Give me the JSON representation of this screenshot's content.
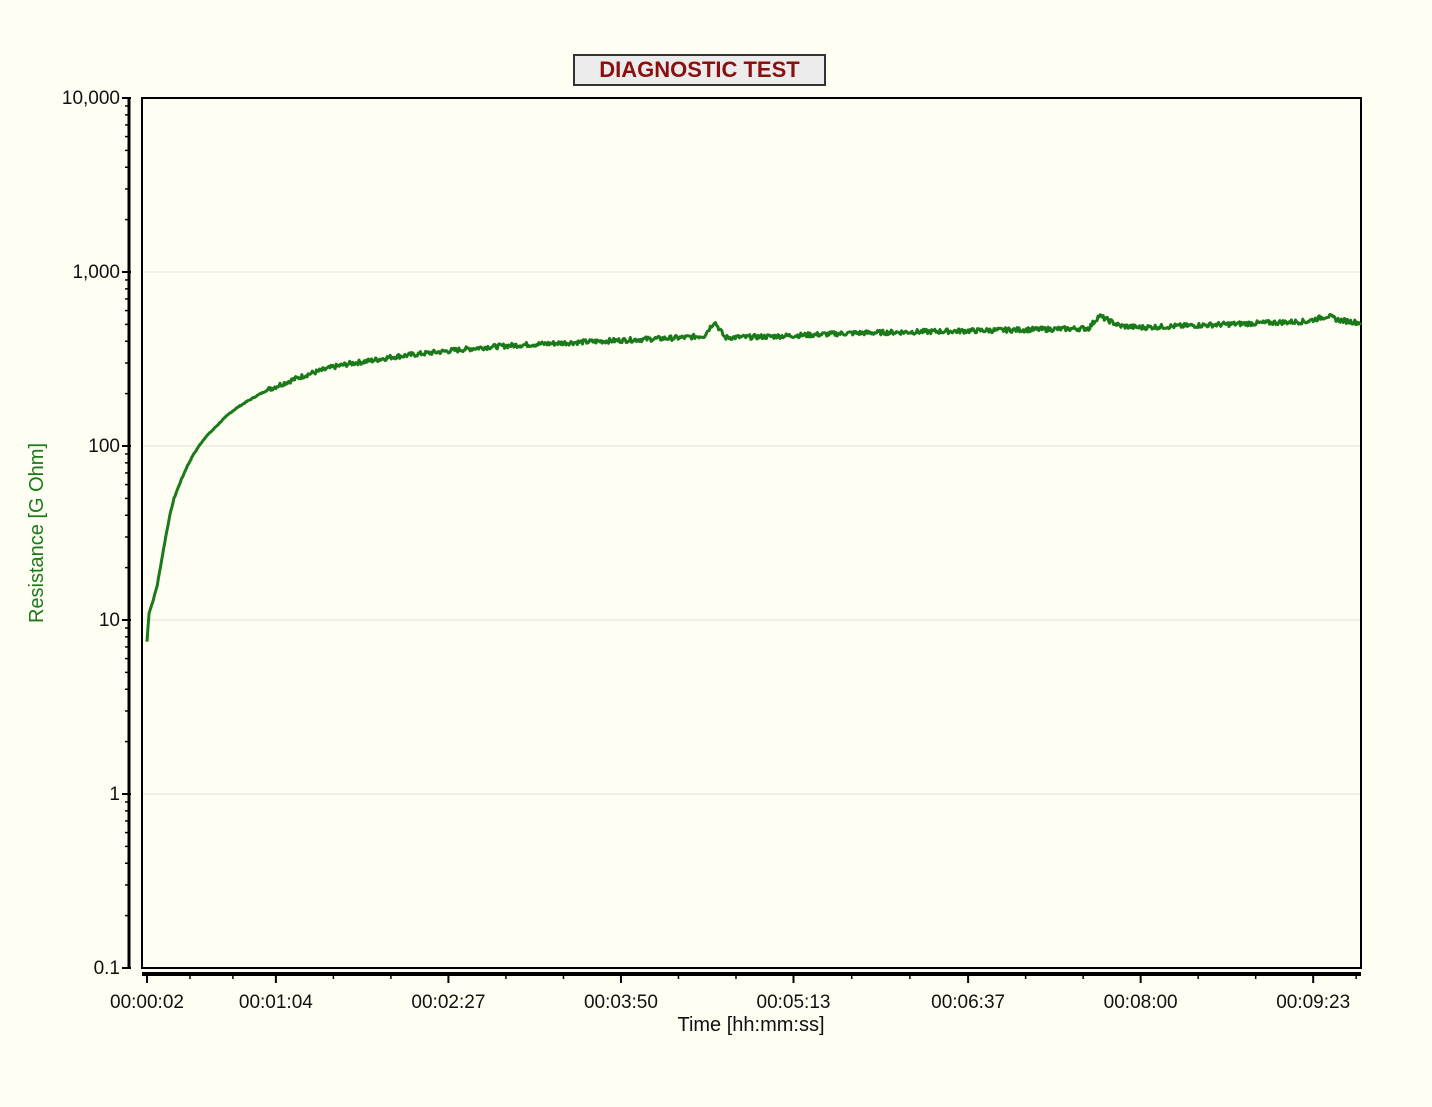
{
  "chart_data": {
    "type": "line",
    "title": "DIAGNOSTIC TEST",
    "xlabel": "Time  [hh:mm:ss]",
    "ylabel": "Resistance  [G Ohm]",
    "yscale": "log",
    "ylim": [
      0.1,
      10000
    ],
    "y_ticks": [
      {
        "value": 0.1,
        "label": "0.1"
      },
      {
        "value": 1,
        "label": "1"
      },
      {
        "value": 10,
        "label": "10"
      },
      {
        "value": 100,
        "label": "100"
      },
      {
        "value": 1000,
        "label": "1,000"
      },
      {
        "value": 10000,
        "label": "10,000"
      }
    ],
    "x_unit": "seconds",
    "xlim": [
      2,
      586
    ],
    "x_ticks": [
      {
        "value": 2,
        "label": "00:00:02"
      },
      {
        "value": 64,
        "label": "00:01:04"
      },
      {
        "value": 147,
        "label": "00:02:27"
      },
      {
        "value": 230,
        "label": "00:03:50"
      },
      {
        "value": 313,
        "label": "00:05:13"
      },
      {
        "value": 397,
        "label": "00:06:37"
      },
      {
        "value": 480,
        "label": "00:08:00"
      },
      {
        "value": 563,
        "label": "00:09:23"
      }
    ],
    "grid": true,
    "colors": {
      "line": "#1a7a1a",
      "title": "#8b0f0f",
      "background": "#fefef2"
    },
    "series": [
      {
        "x": [
          2,
          3,
          5,
          7,
          9,
          11,
          13,
          15,
          18,
          21,
          24,
          27,
          30,
          34,
          38,
          42,
          46,
          50,
          55,
          60,
          66,
          72,
          78,
          85,
          92,
          100,
          110,
          120,
          135,
          150,
          165,
          180,
          200,
          220,
          240,
          260,
          270,
          275,
          280,
          300,
          320,
          340,
          360,
          380,
          400,
          420,
          440,
          455,
          460,
          470,
          480,
          500,
          520,
          540,
          560,
          570,
          575,
          586
        ],
        "y": [
          7.5,
          11,
          13,
          16,
          22,
          30,
          40,
          50,
          62,
          75,
          88,
          100,
          112,
          125,
          140,
          155,
          168,
          180,
          195,
          210,
          225,
          240,
          255,
          270,
          285,
          298,
          310,
          325,
          340,
          355,
          370,
          380,
          390,
          400,
          410,
          420,
          430,
          520,
          420,
          425,
          435,
          445,
          450,
          455,
          460,
          465,
          470,
          475,
          560,
          490,
          480,
          490,
          500,
          510,
          520,
          560,
          530,
          510
        ]
      }
    ]
  }
}
